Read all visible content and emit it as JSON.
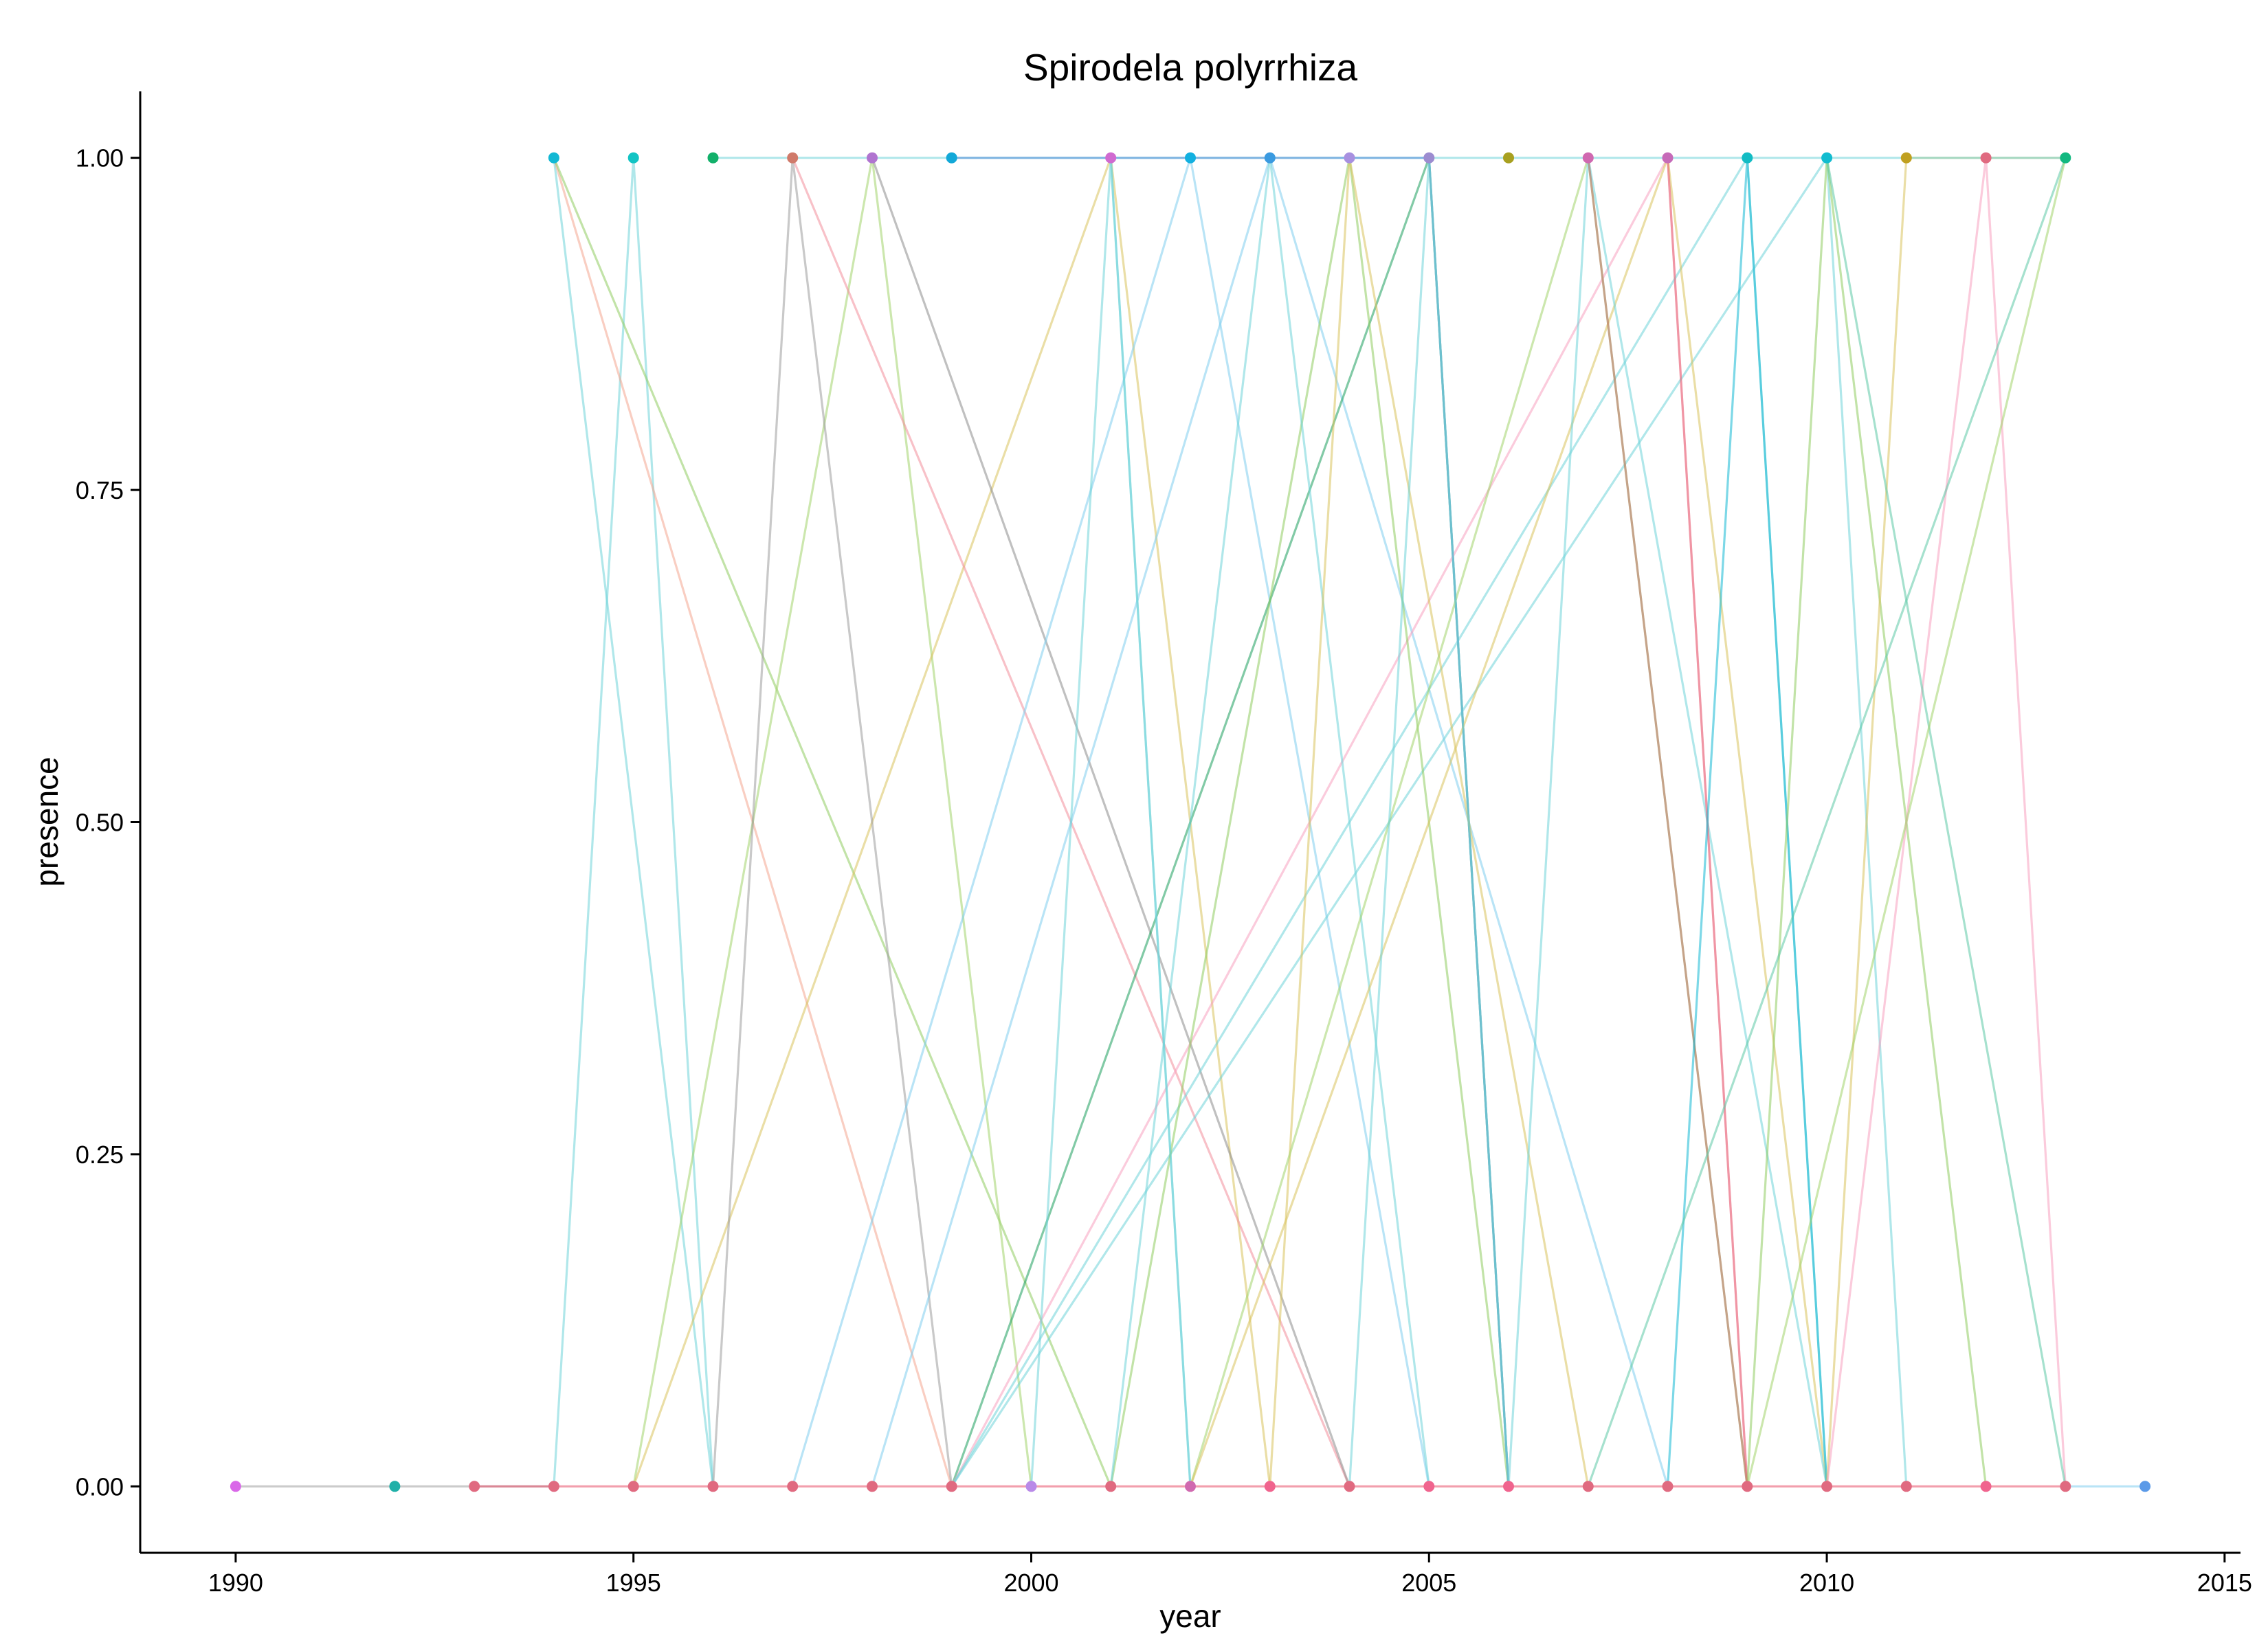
{
  "chart_data": {
    "type": "line",
    "title": "Spirodela polyrrhiza",
    "xlabel": "year",
    "ylabel": "presence",
    "xlim": [
      1988.8,
      2015.2
    ],
    "ylim": [
      -0.05,
      1.05
    ],
    "x_ticks": [
      1990,
      1995,
      2000,
      2005,
      2010,
      2015
    ],
    "x_tick_labels": [
      "1990",
      "1995",
      "2000",
      "2005",
      "2010",
      "2015"
    ],
    "y_ticks": [
      0,
      0.25,
      0.5,
      0.75,
      1
    ],
    "y_tick_labels": [
      "0.00",
      "0.25",
      "0.50",
      "0.75",
      "1.00"
    ],
    "grid": false,
    "legend": "none",
    "series": [
      {
        "color": "#6FD3D8",
        "points": [
          [
            1994,
            1
          ],
          [
            1996,
            0
          ]
        ]
      },
      {
        "color": "#6FD3D8",
        "points": [
          [
            1994,
            0
          ],
          [
            1995,
            1
          ],
          [
            1996,
            0
          ]
        ]
      },
      {
        "color": "#F4A690",
        "points": [
          [
            1994,
            1
          ],
          [
            1999,
            0
          ]
        ]
      },
      {
        "color": "#8FCC60",
        "points": [
          [
            1994,
            1
          ],
          [
            2001,
            0
          ]
        ]
      },
      {
        "color": "#A3D36C",
        "points": [
          [
            1995,
            0
          ],
          [
            1998,
            1
          ],
          [
            2000,
            0
          ]
        ]
      },
      {
        "color": "#D9C25C",
        "points": [
          [
            1995,
            0
          ],
          [
            2001,
            1
          ],
          [
            2003,
            0
          ]
        ]
      },
      {
        "color": "#9C9C9C",
        "points": [
          [
            1996,
            0
          ],
          [
            1997,
            1
          ],
          [
            1999,
            0
          ]
        ]
      },
      {
        "color": "#F28E9A",
        "points": [
          [
            1997,
            1
          ],
          [
            2004,
            0
          ]
        ]
      },
      {
        "color": "#8C8C8C",
        "points": [
          [
            1998,
            1
          ],
          [
            2004,
            0
          ]
        ]
      },
      {
        "color": "#7FCDEE",
        "points": [
          [
            1997,
            0
          ],
          [
            2002,
            1
          ],
          [
            2005,
            0
          ]
        ]
      },
      {
        "color": "#7FCDEE",
        "points": [
          [
            1998,
            0
          ],
          [
            2003,
            1
          ],
          [
            2008,
            0
          ]
        ]
      },
      {
        "color": "#1C9E5C",
        "points": [
          [
            1999,
            0
          ],
          [
            2005,
            1
          ],
          [
            2006,
            0
          ]
        ]
      },
      {
        "color": "#F7A1C0",
        "points": [
          [
            1999,
            0
          ],
          [
            2008,
            1
          ],
          [
            2009,
            0
          ]
        ]
      },
      {
        "color": "#6FD3D8",
        "points": [
          [
            1999,
            0
          ],
          [
            2009,
            1
          ],
          [
            2010,
            0
          ]
        ]
      },
      {
        "color": "#6FD3D8",
        "points": [
          [
            2000,
            0
          ],
          [
            2001,
            1
          ],
          [
            2002,
            0
          ]
        ]
      },
      {
        "color": "#6FD3D8",
        "points": [
          [
            1999,
            0
          ],
          [
            2010,
            1
          ],
          [
            2011,
            0
          ]
        ]
      },
      {
        "color": "#8FCC60",
        "points": [
          [
            2001,
            0
          ],
          [
            2004,
            1
          ],
          [
            2006,
            0
          ]
        ]
      },
      {
        "color": "#6FD3D8",
        "points": [
          [
            2001,
            0
          ],
          [
            2003,
            1
          ],
          [
            2005,
            0
          ]
        ]
      },
      {
        "color": "#5B8DD9",
        "points": [
          [
            2005,
            1
          ],
          [
            2006,
            0
          ]
        ]
      },
      {
        "color": "#D9C25C",
        "points": [
          [
            2003,
            0
          ],
          [
            2004,
            1
          ],
          [
            2007,
            0
          ]
        ]
      },
      {
        "color": "#A3D36C",
        "points": [
          [
            2002,
            0
          ],
          [
            2007,
            1
          ],
          [
            2009,
            0
          ]
        ]
      },
      {
        "color": "#D9C25C",
        "points": [
          [
            2002,
            0
          ],
          [
            2008,
            1
          ],
          [
            2010,
            0
          ]
        ]
      },
      {
        "color": "#6FD3D8",
        "points": [
          [
            2004,
            0
          ],
          [
            2005,
            1
          ],
          [
            2006,
            0
          ]
        ]
      },
      {
        "color": "#6FD3D8",
        "points": [
          [
            2006,
            0
          ],
          [
            2007,
            1
          ],
          [
            2010,
            0
          ]
        ]
      },
      {
        "color": "#C06B6B",
        "points": [
          [
            2007,
            1
          ],
          [
            2009,
            0
          ]
        ]
      },
      {
        "color": "#E86A76",
        "points": [
          [
            2008,
            1
          ],
          [
            2009,
            0
          ]
        ]
      },
      {
        "color": "#12B8D4",
        "points": [
          [
            2008,
            0
          ],
          [
            2009,
            1
          ],
          [
            2010,
            0
          ]
        ]
      },
      {
        "color": "#8FCC60",
        "points": [
          [
            2009,
            0
          ],
          [
            2010,
            1
          ],
          [
            2012,
            0
          ]
        ]
      },
      {
        "color": "#D9C25C",
        "points": [
          [
            2010,
            0
          ],
          [
            2011,
            1
          ],
          [
            2013,
            1
          ]
        ]
      },
      {
        "color": "#F7A1C0",
        "points": [
          [
            2010,
            0
          ],
          [
            2012,
            1
          ],
          [
            2013,
            0
          ]
        ]
      },
      {
        "color": "#6FD3D8",
        "points": [
          [
            2001,
            1
          ],
          [
            2002,
            0
          ]
        ]
      },
      {
        "color": "#5CC9A6",
        "points": [
          [
            2007,
            0
          ],
          [
            2013,
            1
          ]
        ]
      },
      {
        "color": "#5CC9A6",
        "points": [
          [
            2010,
            1
          ],
          [
            2013,
            0
          ]
        ]
      },
      {
        "color": "#A3D36C",
        "points": [
          [
            2009,
            0
          ],
          [
            2013,
            1
          ]
        ]
      },
      {
        "color": "#6FD3D8",
        "points": [
          [
            1996,
            1
          ],
          [
            2013,
            1
          ]
        ]
      },
      {
        "color": "#5B8DD9",
        "points": [
          [
            1999,
            1
          ],
          [
            2005,
            1
          ]
        ]
      },
      {
        "color": "#A0A0A0",
        "points": [
          [
            1990,
            0
          ],
          [
            1994,
            0
          ]
        ]
      },
      {
        "color": "#E8506A",
        "points": [
          [
            1993,
            0
          ],
          [
            2013,
            0
          ]
        ]
      },
      {
        "color": "#7FCDEE",
        "points": [
          [
            2013,
            0
          ],
          [
            2014,
            0
          ]
        ]
      }
    ],
    "points": [
      {
        "x": 1990,
        "y": 0,
        "color": "#D968E8"
      },
      {
        "x": 1992,
        "y": 0,
        "color": "#20B0A8"
      },
      {
        "x": 1993,
        "y": 0,
        "color": "#E06A80"
      },
      {
        "x": 1994,
        "y": 0,
        "color": "#E06A80"
      },
      {
        "x": 1995,
        "y": 0,
        "color": "#E06A80"
      },
      {
        "x": 1996,
        "y": 0,
        "color": "#E06A80"
      },
      {
        "x": 1997,
        "y": 0,
        "color": "#E06A80"
      },
      {
        "x": 1998,
        "y": 0,
        "color": "#E06A80"
      },
      {
        "x": 1999,
        "y": 0,
        "color": "#E06A80"
      },
      {
        "x": 2000,
        "y": 0,
        "color": "#B98AE8"
      },
      {
        "x": 2001,
        "y": 0,
        "color": "#E06A80"
      },
      {
        "x": 2002,
        "y": 0,
        "color": "#D06AB0"
      },
      {
        "x": 2003,
        "y": 0,
        "color": "#F0648E"
      },
      {
        "x": 2004,
        "y": 0,
        "color": "#E06A80"
      },
      {
        "x": 2005,
        "y": 0,
        "color": "#F0648E"
      },
      {
        "x": 2006,
        "y": 0,
        "color": "#F0648E"
      },
      {
        "x": 2007,
        "y": 0,
        "color": "#E06A80"
      },
      {
        "x": 2008,
        "y": 0,
        "color": "#E06A80"
      },
      {
        "x": 2009,
        "y": 0,
        "color": "#E06A80"
      },
      {
        "x": 2010,
        "y": 0,
        "color": "#E06A80"
      },
      {
        "x": 2011,
        "y": 0,
        "color": "#E06A80"
      },
      {
        "x": 2012,
        "y": 0,
        "color": "#F0648E"
      },
      {
        "x": 2013,
        "y": 0,
        "color": "#E06A80"
      },
      {
        "x": 2014,
        "y": 0,
        "color": "#5B9AE8"
      },
      {
        "x": 1994,
        "y": 1,
        "color": "#12B8D4"
      },
      {
        "x": 1995,
        "y": 1,
        "color": "#12C4C4"
      },
      {
        "x": 1996,
        "y": 1,
        "color": "#12B06A"
      },
      {
        "x": 1997,
        "y": 1,
        "color": "#D07A6A"
      },
      {
        "x": 1998,
        "y": 1,
        "color": "#B074D0"
      },
      {
        "x": 1999,
        "y": 1,
        "color": "#12A8D8"
      },
      {
        "x": 2001,
        "y": 1,
        "color": "#D06AD0"
      },
      {
        "x": 2002,
        "y": 1,
        "color": "#12B0E0"
      },
      {
        "x": 2003,
        "y": 1,
        "color": "#3A9AE0"
      },
      {
        "x": 2004,
        "y": 1,
        "color": "#A890E0"
      },
      {
        "x": 2005,
        "y": 1,
        "color": "#9C8CD0"
      },
      {
        "x": 2006,
        "y": 1,
        "color": "#A8A020"
      },
      {
        "x": 2007,
        "y": 1,
        "color": "#D068B0"
      },
      {
        "x": 2008,
        "y": 1,
        "color": "#C66AB8"
      },
      {
        "x": 2009,
        "y": 1,
        "color": "#12BCC4"
      },
      {
        "x": 2010,
        "y": 1,
        "color": "#12BCD0"
      },
      {
        "x": 2011,
        "y": 1,
        "color": "#C0A020"
      },
      {
        "x": 2012,
        "y": 1,
        "color": "#E06A80"
      },
      {
        "x": 2013,
        "y": 1,
        "color": "#12B880"
      }
    ]
  }
}
